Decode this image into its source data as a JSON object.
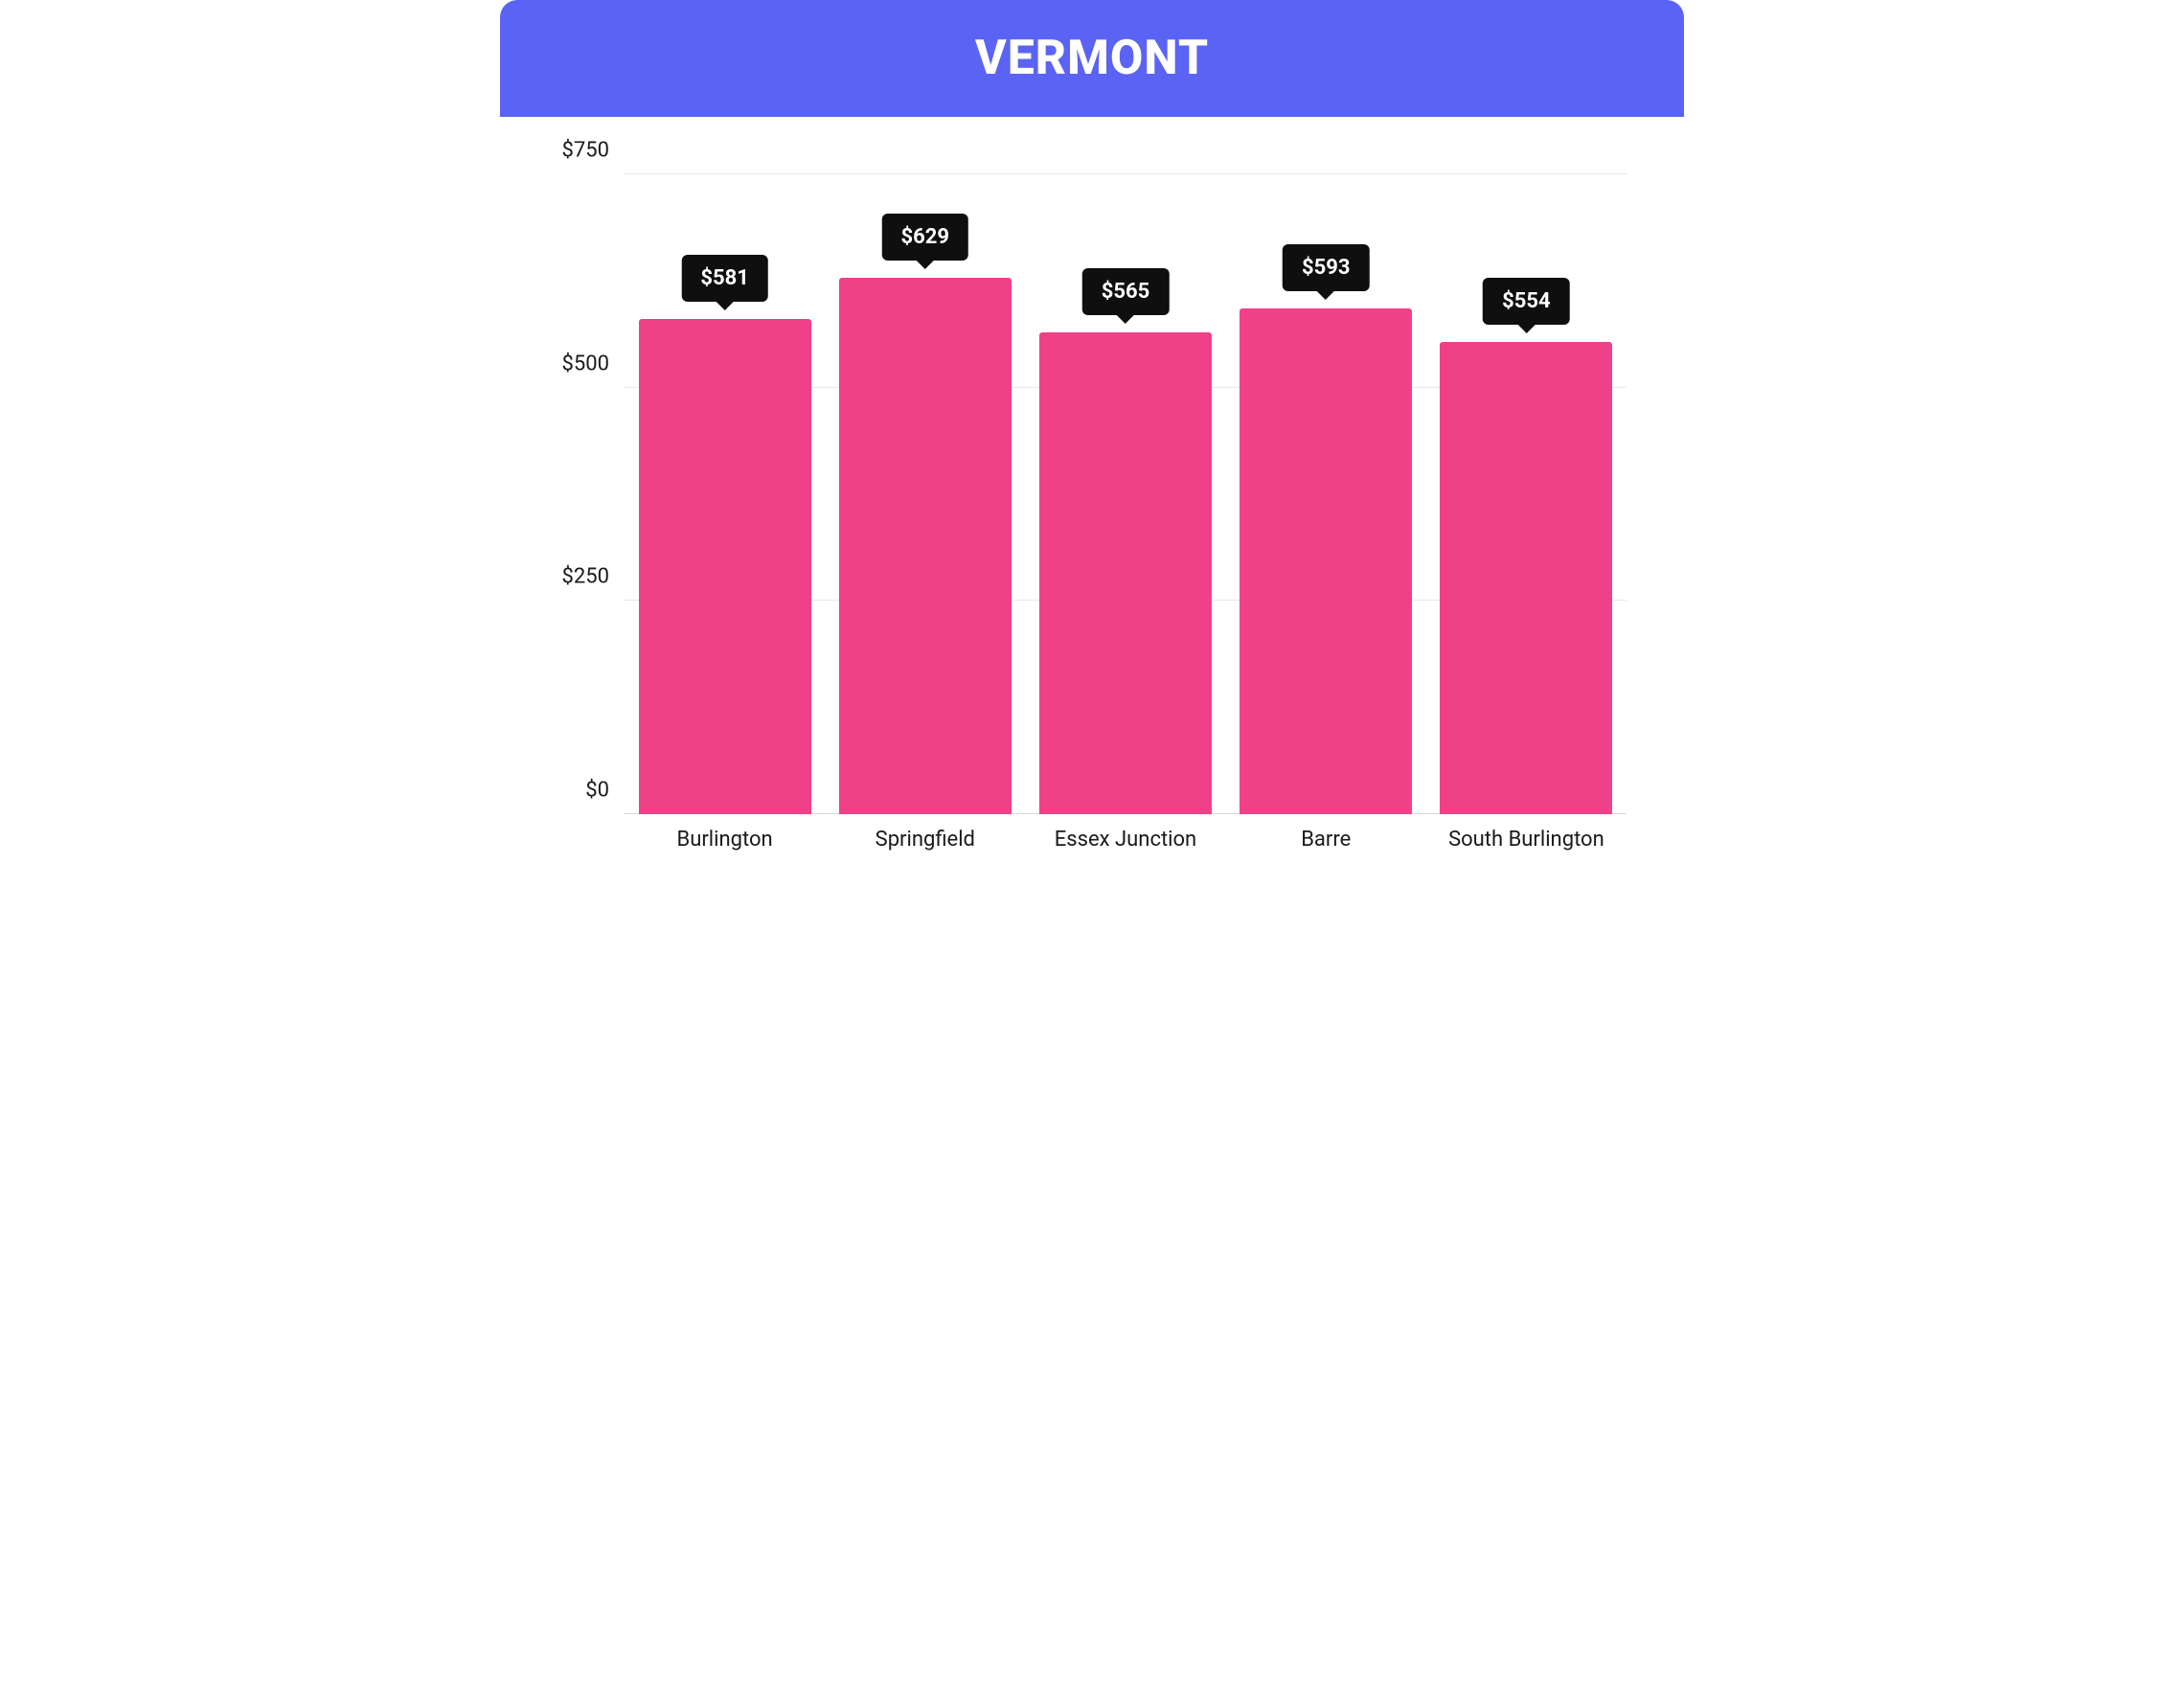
{
  "header": {
    "title": "VERMONT",
    "background_color": "#5b63f5",
    "text_color": "#ffffff",
    "fontsize": 50
  },
  "chart": {
    "type": "bar",
    "background_color": "#ffffff",
    "bar_color": "#ef4187",
    "grid_color": "#e8e8e8",
    "tooltip_bg": "#0f0f0f",
    "tooltip_text_color": "#ffffff",
    "label_color": "#1a1a1a",
    "label_fontsize": 22,
    "tooltip_fontsize": 22,
    "value_prefix": "$",
    "ylim": [
      0,
      750
    ],
    "ytick_step": 250,
    "yticks": [
      {
        "value": 0,
        "label": "$0"
      },
      {
        "value": 250,
        "label": "$250"
      },
      {
        "value": 500,
        "label": "$500"
      },
      {
        "value": 750,
        "label": "$750"
      }
    ],
    "bar_width_ratio": 0.86,
    "bars": [
      {
        "category": "Burlington",
        "value": 581,
        "label": "$581"
      },
      {
        "category": "Springfield",
        "value": 629,
        "label": "$629"
      },
      {
        "category": "Essex Junction",
        "value": 565,
        "label": "$565"
      },
      {
        "category": "Barre",
        "value": 593,
        "label": "$593"
      },
      {
        "category": "South Burlington",
        "value": 554,
        "label": "$554"
      }
    ]
  }
}
